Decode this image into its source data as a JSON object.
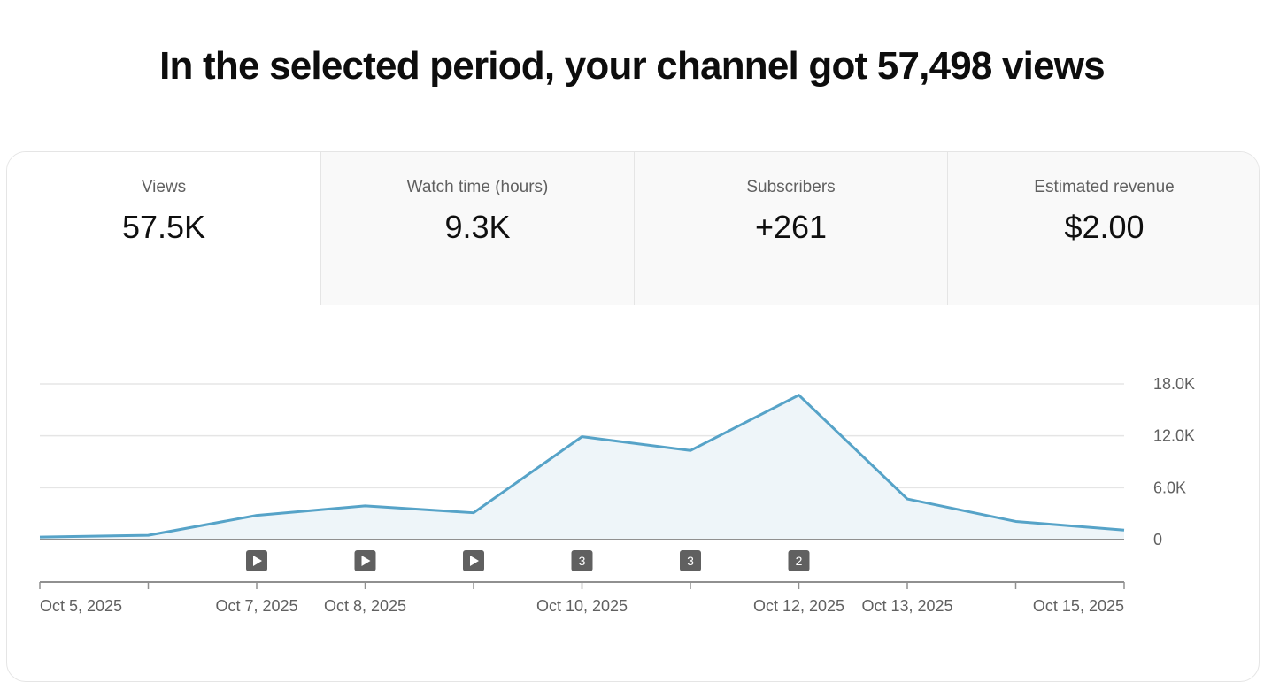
{
  "headline": "In the selected period, your channel got 57,498 views",
  "tabs": [
    {
      "label": "Views",
      "value": "57.5K",
      "active": true
    },
    {
      "label": "Watch time (hours)",
      "value": "9.3K",
      "active": false
    },
    {
      "label": "Subscribers",
      "value": "+261",
      "active": false
    },
    {
      "label": "Estimated revenue",
      "value": "$2.00",
      "active": false
    }
  ],
  "chart_data": {
    "type": "area",
    "series": [
      {
        "values": [
          {
            "x": "2025-10-05",
            "y": 300
          },
          {
            "x": "2025-10-06",
            "y": 500
          },
          {
            "x": "2025-10-07",
            "y": 2800
          },
          {
            "x": "2025-10-08",
            "y": 3900
          },
          {
            "x": "2025-10-09",
            "y": 3100
          },
          {
            "x": "2025-10-10",
            "y": 11900
          },
          {
            "x": "2025-10-11",
            "y": 10300
          },
          {
            "x": "2025-10-12",
            "y": 16700
          },
          {
            "x": "2025-10-13",
            "y": 4700
          },
          {
            "x": "2025-10-14",
            "y": 2100
          },
          {
            "x": "2025-10-15",
            "y": 1100
          }
        ],
        "color": "#56a3c8"
      }
    ],
    "x_start": "2025-10-05",
    "x_end": "2025-10-15",
    "x_ticks": [
      {
        "x": "2025-10-05",
        "label": "Oct 5, 2025"
      },
      {
        "x": "2025-10-07",
        "label": "Oct 7, 2025"
      },
      {
        "x": "2025-10-08",
        "label": "Oct 8, 2025"
      },
      {
        "x": "2025-10-10",
        "label": "Oct 10, 2025"
      },
      {
        "x": "2025-10-12",
        "label": "Oct 12, 2025"
      },
      {
        "x": "2025-10-13",
        "label": "Oct 13, 2025"
      },
      {
        "x": "2025-10-15",
        "label": "Oct 15, 2025"
      }
    ],
    "y_ticks": [
      {
        "value": 0,
        "label": "0"
      },
      {
        "value": 6000,
        "label": "6.0K"
      },
      {
        "value": 12000,
        "label": "12.0K"
      },
      {
        "value": 18000,
        "label": "18.0K"
      }
    ],
    "ylim": [
      0,
      18000
    ],
    "grid": true,
    "markers": [
      {
        "x": "2025-10-07",
        "kind": "play",
        "label": ""
      },
      {
        "x": "2025-10-08",
        "kind": "play",
        "label": ""
      },
      {
        "x": "2025-10-09",
        "kind": "play",
        "label": ""
      },
      {
        "x": "2025-10-10",
        "kind": "count",
        "label": "3"
      },
      {
        "x": "2025-10-11",
        "kind": "count",
        "label": "3"
      },
      {
        "x": "2025-10-12",
        "kind": "count",
        "label": "2"
      }
    ],
    "colors": {
      "line": "#56a3c8",
      "fill": "#eef5f9",
      "grid": "#e5e5e5",
      "axis": "#909090",
      "marker": "#606060"
    }
  }
}
